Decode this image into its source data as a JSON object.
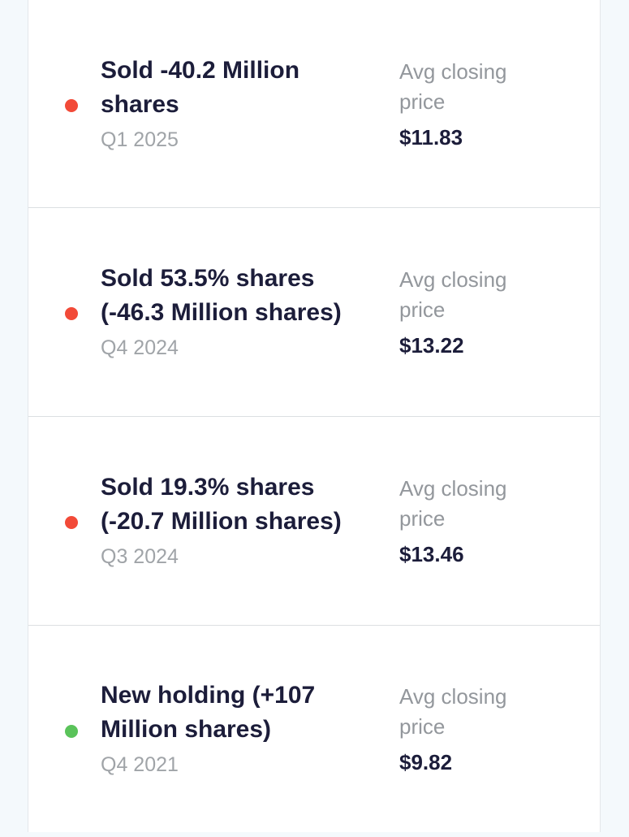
{
  "transactions": [
    {
      "action": "sell",
      "title": "Sold -40.2 Million\nshares",
      "period": "Q1 2025",
      "price_label": "Avg closing\nprice",
      "price": "$11.83",
      "indicator_color": "#f24a38"
    },
    {
      "action": "sell",
      "title": "Sold 53.5% shares\n(-46.3 Million shares)",
      "period": "Q4 2024",
      "price_label": "Avg closing\nprice",
      "price": "$13.22",
      "indicator_color": "#f24a38"
    },
    {
      "action": "sell",
      "title": "Sold 19.3% shares\n(-20.7 Million shares)",
      "period": "Q3 2024",
      "price_label": "Avg closing\nprice",
      "price": "$13.46",
      "indicator_color": "#f24a38"
    },
    {
      "action": "buy",
      "title": "New holding (+107\nMillion shares)",
      "period": "Q4 2021",
      "price_label": "Avg closing\nprice",
      "price": "$9.82",
      "indicator_color": "#5ac35a"
    }
  ]
}
